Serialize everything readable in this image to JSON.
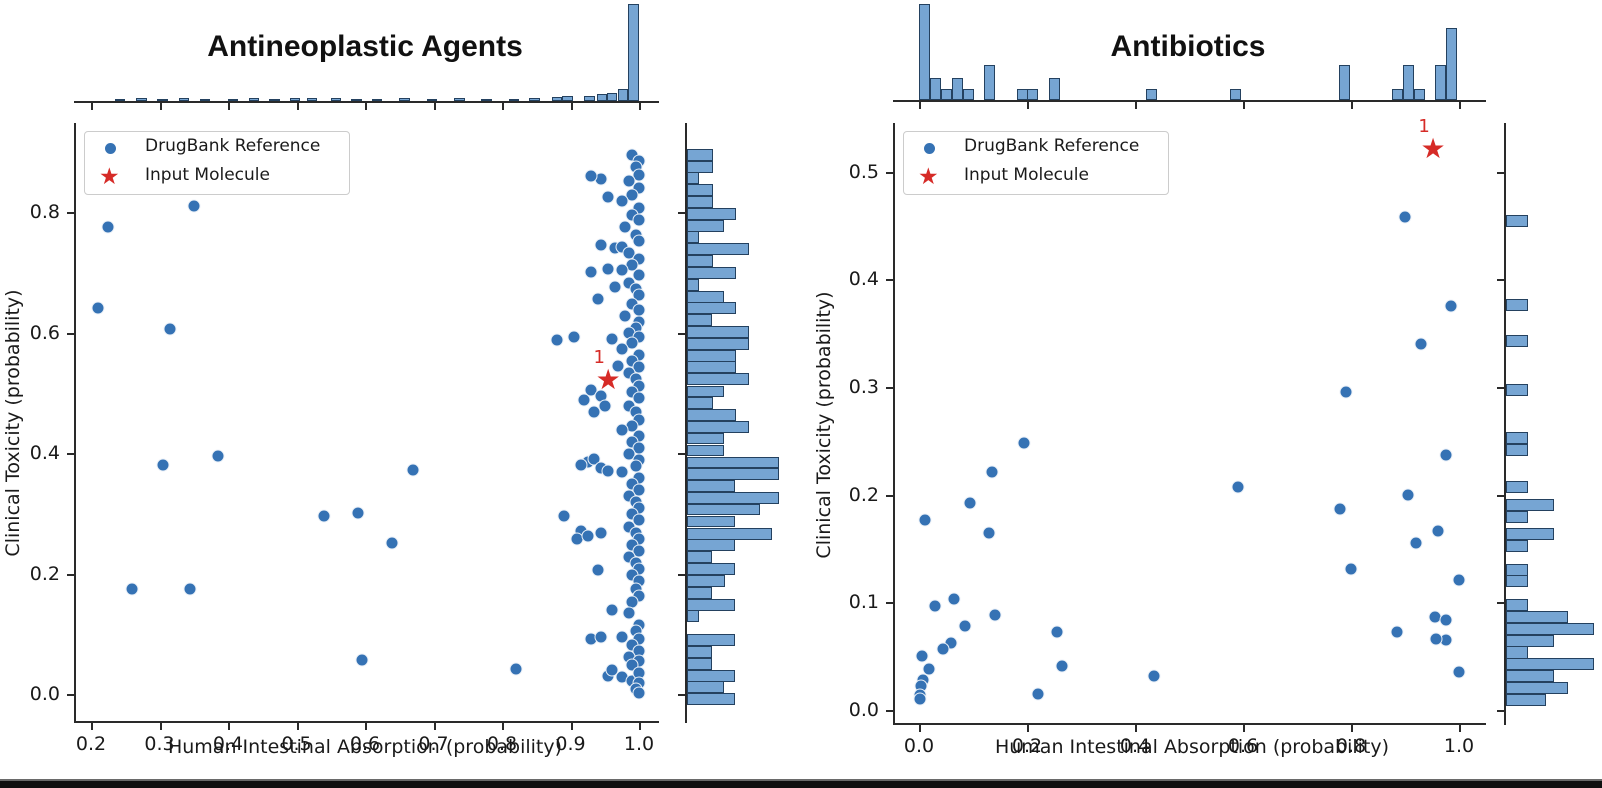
{
  "figure": {
    "star_label": "1",
    "legend_items": [
      "DrugBank Reference",
      "Input Molecule"
    ],
    "colors": {
      "point_blue": "#3572b4",
      "hist_fill": "#76a5d3",
      "hist_edge": "#24415f",
      "star_red": "#d62b27",
      "text": "#1a1a1a"
    }
  },
  "chart_data": [
    {
      "type": "scatter",
      "title": "Antineoplastic Agents",
      "xlabel": "Human Intestinal Absorption (probability)",
      "ylabel": "Clinical Toxicity (probability)",
      "xlim": [
        0.175,
        1.025
      ],
      "ylim": [
        -0.045,
        0.945
      ],
      "xticks": [
        0.2,
        0.3,
        0.4,
        0.5,
        0.6,
        0.7,
        0.8,
        0.9,
        1.0
      ],
      "xtick_labels": [
        "0.2",
        "0.3",
        "0.4",
        "0.5",
        "0.6",
        "0.7",
        "0.8",
        "0.9",
        "1.0"
      ],
      "yticks": [
        0.0,
        0.2,
        0.4,
        0.6,
        0.8
      ],
      "ytick_labels": [
        "0.0",
        "0.2",
        "0.4",
        "0.6",
        "0.8"
      ],
      "legend": [
        "DrugBank Reference",
        "Input Molecule"
      ],
      "legend_position": "upper left",
      "grid": false,
      "star": {
        "x": 0.955,
        "y": 0.521,
        "label": "1"
      },
      "points": [
        [
          0.225,
          0.775
        ],
        [
          0.35,
          0.81
        ],
        [
          0.21,
          0.64
        ],
        [
          0.315,
          0.605
        ],
        [
          0.305,
          0.38
        ],
        [
          0.385,
          0.395
        ],
        [
          0.26,
          0.175
        ],
        [
          0.345,
          0.175
        ],
        [
          0.54,
          0.295
        ],
        [
          0.59,
          0.3
        ],
        [
          0.64,
          0.25
        ],
        [
          0.67,
          0.372
        ],
        [
          0.595,
          0.057
        ],
        [
          0.82,
          0.042
        ],
        [
          0.88,
          0.588
        ],
        [
          0.905,
          0.592
        ],
        [
          0.89,
          0.295
        ],
        [
          0.915,
          0.27
        ],
        [
          0.925,
          0.385
        ],
        [
          0.935,
          0.39
        ],
        [
          0.915,
          0.38
        ],
        [
          0.945,
          0.375
        ],
        [
          0.955,
          0.37
        ],
        [
          0.91,
          0.258
        ],
        [
          0.925,
          0.262
        ],
        [
          0.945,
          0.268
        ],
        [
          0.94,
          0.205
        ],
        [
          0.96,
          0.14
        ],
        [
          0.93,
          0.092
        ],
        [
          0.945,
          0.095
        ],
        [
          0.955,
          0.03
        ],
        [
          0.93,
          0.505
        ],
        [
          0.945,
          0.495
        ],
        [
          0.92,
          0.488
        ],
        [
          0.95,
          0.478
        ],
        [
          0.935,
          0.468
        ],
        [
          0.96,
          0.59
        ],
        [
          0.93,
          0.7
        ],
        [
          0.94,
          0.655
        ],
        [
          0.945,
          0.855
        ],
        [
          0.93,
          0.86
        ],
        [
          0.955,
          0.825
        ],
        [
          0.965,
          0.74
        ],
        [
          0.955,
          0.705
        ],
        [
          0.965,
          0.675
        ],
        [
          0.945,
          0.745
        ],
        [
          0.99,
          0.895
        ],
        [
          1.0,
          0.885
        ],
        [
          0.995,
          0.875
        ],
        [
          1.0,
          0.862
        ],
        [
          0.985,
          0.852
        ],
        [
          1.0,
          0.84
        ],
        [
          0.99,
          0.828
        ],
        [
          0.975,
          0.818
        ],
        [
          1.0,
          0.806
        ],
        [
          0.99,
          0.795
        ],
        [
          1.0,
          0.786
        ],
        [
          0.98,
          0.775
        ],
        [
          0.995,
          0.762
        ],
        [
          1.0,
          0.752
        ],
        [
          0.975,
          0.742
        ],
        [
          0.985,
          0.732
        ],
        [
          1.0,
          0.722
        ],
        [
          0.99,
          0.712
        ],
        [
          0.975,
          0.703
        ],
        [
          1.0,
          0.695
        ],
        [
          0.985,
          0.682
        ],
        [
          0.995,
          0.672
        ],
        [
          1.0,
          0.662
        ],
        [
          0.99,
          0.648
        ],
        [
          1.0,
          0.638
        ],
        [
          0.98,
          0.628
        ],
        [
          1.0,
          0.618
        ],
        [
          0.995,
          0.608
        ],
        [
          0.985,
          0.599
        ],
        [
          1.0,
          0.592
        ],
        [
          0.99,
          0.582
        ],
        [
          0.975,
          0.572
        ],
        [
          1.0,
          0.563
        ],
        [
          0.99,
          0.552
        ],
        [
          0.97,
          0.545
        ],
        [
          1.0,
          0.542
        ],
        [
          0.985,
          0.532
        ],
        [
          0.995,
          0.522
        ],
        [
          1.0,
          0.512
        ],
        [
          0.99,
          0.502
        ],
        [
          1.0,
          0.492
        ],
        [
          0.985,
          0.478
        ],
        [
          0.995,
          0.468
        ],
        [
          1.0,
          0.455
        ],
        [
          0.99,
          0.445
        ],
        [
          0.975,
          0.438
        ],
        [
          1.0,
          0.428
        ],
        [
          0.99,
          0.418
        ],
        [
          1.0,
          0.408
        ],
        [
          0.985,
          0.398
        ],
        [
          1.0,
          0.388
        ],
        [
          0.995,
          0.378
        ],
        [
          0.975,
          0.368
        ],
        [
          1.0,
          0.358
        ],
        [
          0.99,
          0.348
        ],
        [
          1.0,
          0.338
        ],
        [
          0.985,
          0.328
        ],
        [
          0.995,
          0.318
        ],
        [
          1.0,
          0.308
        ],
        [
          0.99,
          0.298
        ],
        [
          1.0,
          0.288
        ],
        [
          0.985,
          0.278
        ],
        [
          0.995,
          0.268
        ],
        [
          1.0,
          0.258
        ],
        [
          0.99,
          0.248
        ],
        [
          1.0,
          0.238
        ],
        [
          0.985,
          0.228
        ],
        [
          0.995,
          0.218
        ],
        [
          1.0,
          0.208
        ],
        [
          0.99,
          0.198
        ],
        [
          1.0,
          0.188
        ],
        [
          0.995,
          0.175
        ],
        [
          1.0,
          0.162
        ],
        [
          0.99,
          0.152
        ],
        [
          0.985,
          0.135
        ],
        [
          1.0,
          0.115
        ],
        [
          0.995,
          0.105
        ],
        [
          0.975,
          0.095
        ],
        [
          1.0,
          0.092
        ],
        [
          0.99,
          0.082
        ],
        [
          1.0,
          0.072
        ],
        [
          0.985,
          0.062
        ],
        [
          1.0,
          0.055
        ],
        [
          0.99,
          0.048
        ],
        [
          0.96,
          0.04
        ],
        [
          0.975,
          0.028
        ],
        [
          0.99,
          0.022
        ],
        [
          1.0,
          0.035
        ],
        [
          1.0,
          0.018
        ],
        [
          0.995,
          0.008
        ],
        [
          1.0,
          0.002
        ]
      ],
      "top_hist": {
        "bin_width": 0.0153,
        "bars": [
          [
            0.235,
            2
          ],
          [
            0.266,
            3
          ],
          [
            0.297,
            2
          ],
          [
            0.328,
            3
          ],
          [
            0.359,
            2
          ],
          [
            0.4,
            2
          ],
          [
            0.43,
            3
          ],
          [
            0.46,
            2
          ],
          [
            0.49,
            3
          ],
          [
            0.515,
            3
          ],
          [
            0.55,
            3
          ],
          [
            0.58,
            2
          ],
          [
            0.61,
            2
          ],
          [
            0.65,
            3
          ],
          [
            0.69,
            2
          ],
          [
            0.73,
            3
          ],
          [
            0.77,
            2
          ],
          [
            0.81,
            2
          ],
          [
            0.84,
            3
          ],
          [
            0.873,
            4
          ],
          [
            0.888,
            5
          ],
          [
            0.92,
            5
          ],
          [
            0.938,
            7
          ],
          [
            0.953,
            8
          ],
          [
            0.969,
            12
          ],
          [
            0.984,
            97
          ]
        ]
      },
      "right_hist": {
        "bin_height": 0.0196,
        "bars": [
          [
            0.905,
            26
          ],
          [
            0.885,
            26
          ],
          [
            0.866,
            12
          ],
          [
            0.846,
            26
          ],
          [
            0.827,
            26
          ],
          [
            0.807,
            49
          ],
          [
            0.787,
            37
          ],
          [
            0.768,
            12
          ],
          [
            0.748,
            62
          ],
          [
            0.728,
            26
          ],
          [
            0.709,
            49
          ],
          [
            0.689,
            12
          ],
          [
            0.669,
            37
          ],
          [
            0.65,
            49
          ],
          [
            0.63,
            25
          ],
          [
            0.611,
            62
          ],
          [
            0.591,
            62
          ],
          [
            0.571,
            49
          ],
          [
            0.552,
            49
          ],
          [
            0.532,
            62
          ],
          [
            0.512,
            37
          ],
          [
            0.493,
            26
          ],
          [
            0.473,
            49
          ],
          [
            0.453,
            62
          ],
          [
            0.434,
            37
          ],
          [
            0.414,
            37
          ],
          [
            0.394,
            92
          ],
          [
            0.375,
            92
          ],
          [
            0.355,
            48
          ],
          [
            0.335,
            92
          ],
          [
            0.316,
            73
          ],
          [
            0.296,
            48
          ],
          [
            0.276,
            85
          ],
          [
            0.257,
            48
          ],
          [
            0.237,
            25
          ],
          [
            0.217,
            48
          ],
          [
            0.198,
            38
          ],
          [
            0.178,
            25
          ],
          [
            0.158,
            48
          ],
          [
            0.139,
            12
          ],
          [
            0.099,
            48
          ],
          [
            0.08,
            25
          ],
          [
            0.06,
            25
          ],
          [
            0.04,
            48
          ],
          [
            0.021,
            37
          ],
          [
            0.001,
            48
          ]
        ]
      }
    },
    {
      "type": "scatter",
      "title": "Antibiotics",
      "xlabel": "Human Intestinal Absorption (probability)",
      "ylabel": "Clinical Toxicity (probability)",
      "xlim": [
        -0.05,
        1.06
      ],
      "ylim": [
        -0.012,
        0.545
      ],
      "xticks": [
        0.0,
        0.2,
        0.4,
        0.6,
        0.8,
        1.0
      ],
      "xtick_labels": [
        "0.0",
        "0.2",
        "0.4",
        "0.6",
        "0.8",
        "1.0"
      ],
      "yticks": [
        0.0,
        0.1,
        0.2,
        0.3,
        0.4,
        0.5
      ],
      "ytick_labels": [
        "0.0",
        "0.1",
        "0.2",
        "0.3",
        "0.4",
        "0.5"
      ],
      "legend": [
        "DrugBank Reference",
        "Input Molecule"
      ],
      "legend_position": "upper left",
      "grid": false,
      "star": {
        "x": 0.952,
        "y": 0.521,
        "label": "1"
      },
      "points": [
        [
          0.9,
          0.458
        ],
        [
          0.985,
          0.375
        ],
        [
          0.93,
          0.34
        ],
        [
          0.79,
          0.295
        ],
        [
          0.195,
          0.248
        ],
        [
          0.975,
          0.237
        ],
        [
          0.135,
          0.221
        ],
        [
          0.59,
          0.207
        ],
        [
          0.905,
          0.2
        ],
        [
          0.095,
          0.192
        ],
        [
          0.78,
          0.187
        ],
        [
          0.012,
          0.176
        ],
        [
          0.13,
          0.164
        ],
        [
          0.962,
          0.166
        ],
        [
          0.92,
          0.155
        ],
        [
          0.8,
          0.131
        ],
        [
          1.0,
          0.121
        ],
        [
          0.065,
          0.103
        ],
        [
          0.03,
          0.097
        ],
        [
          0.14,
          0.088
        ],
        [
          0.085,
          0.078
        ],
        [
          0.955,
          0.086
        ],
        [
          0.975,
          0.084
        ],
        [
          0.885,
          0.072
        ],
        [
          0.255,
          0.072
        ],
        [
          0.06,
          0.062
        ],
        [
          0.045,
          0.057
        ],
        [
          0.975,
          0.065
        ],
        [
          0.958,
          0.066
        ],
        [
          0.005,
          0.05
        ],
        [
          0.018,
          0.038
        ],
        [
          0.265,
          0.041
        ],
        [
          0.435,
          0.032
        ],
        [
          1.0,
          0.035
        ],
        [
          0.008,
          0.028
        ],
        [
          0.004,
          0.022
        ],
        [
          0.22,
          0.015
        ],
        [
          0.002,
          0.014
        ],
        [
          0.001,
          0.01
        ]
      ],
      "top_hist": {
        "bin_width": 0.0204,
        "bars": [
          [
            0.0,
            96
          ],
          [
            0.02,
            22
          ],
          [
            0.041,
            11
          ],
          [
            0.061,
            22
          ],
          [
            0.082,
            11
          ],
          [
            0.12,
            35
          ],
          [
            0.181,
            11
          ],
          [
            0.2,
            11
          ],
          [
            0.241,
            22
          ],
          [
            0.42,
            11
          ],
          [
            0.576,
            11
          ],
          [
            0.778,
            35
          ],
          [
            0.876,
            11
          ],
          [
            0.896,
            35
          ],
          [
            0.916,
            11
          ],
          [
            0.956,
            35
          ],
          [
            0.976,
            72
          ]
        ]
      },
      "right_hist": {
        "bin_height": 0.0112,
        "bars": [
          [
            0.46,
            22
          ],
          [
            0.382,
            22
          ],
          [
            0.348,
            22
          ],
          [
            0.303,
            22
          ],
          [
            0.258,
            22
          ],
          [
            0.247,
            22
          ],
          [
            0.213,
            22
          ],
          [
            0.196,
            48
          ],
          [
            0.185,
            22
          ],
          [
            0.169,
            48
          ],
          [
            0.158,
            22
          ],
          [
            0.136,
            22
          ],
          [
            0.125,
            22
          ],
          [
            0.103,
            22
          ],
          [
            0.092,
            62
          ],
          [
            0.081,
            88
          ],
          [
            0.07,
            48
          ],
          [
            0.059,
            22
          ],
          [
            0.048,
            88
          ],
          [
            0.037,
            48
          ],
          [
            0.026,
            62
          ],
          [
            0.015,
            40
          ]
        ]
      }
    }
  ]
}
